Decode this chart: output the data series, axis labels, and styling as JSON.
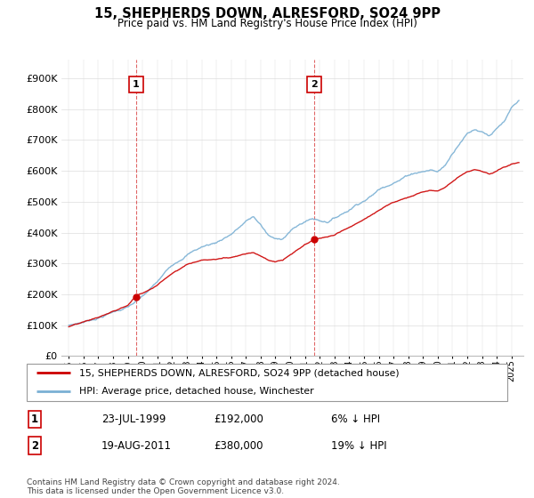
{
  "title": "15, SHEPHERDS DOWN, ALRESFORD, SO24 9PP",
  "subtitle": "Price paid vs. HM Land Registry's House Price Index (HPI)",
  "ylabel_ticks": [
    "£0",
    "£100K",
    "£200K",
    "£300K",
    "£400K",
    "£500K",
    "£600K",
    "£700K",
    "£800K",
    "£900K"
  ],
  "ytick_values": [
    0,
    100000,
    200000,
    300000,
    400000,
    500000,
    600000,
    700000,
    800000,
    900000
  ],
  "ylim": [
    0,
    960000
  ],
  "xlim_start": 1994.5,
  "xlim_end": 2025.8,
  "xtick_years": [
    1995,
    1996,
    1997,
    1998,
    1999,
    2000,
    2001,
    2002,
    2003,
    2004,
    2005,
    2006,
    2007,
    2008,
    2009,
    2010,
    2011,
    2012,
    2013,
    2014,
    2015,
    2016,
    2017,
    2018,
    2019,
    2020,
    2021,
    2022,
    2023,
    2024,
    2025
  ],
  "sale1_x": 1999.55,
  "sale1_y": 192000,
  "sale1_label": "1",
  "sale1_date": "23-JUL-1999",
  "sale1_price": "£192,000",
  "sale1_hpi": "6% ↓ HPI",
  "sale2_x": 2011.63,
  "sale2_y": 380000,
  "sale2_label": "2",
  "sale2_date": "19-AUG-2011",
  "sale2_price": "£380,000",
  "sale2_hpi": "19% ↓ HPI",
  "red_color": "#cc0000",
  "blue_color": "#7ab0d4",
  "legend_label_red": "15, SHEPHERDS DOWN, ALRESFORD, SO24 9PP (detached house)",
  "legend_label_blue": "HPI: Average price, detached house, Winchester",
  "footnote": "Contains HM Land Registry data © Crown copyright and database right 2024.\nThis data is licensed under the Open Government Licence v3.0.",
  "grid_color": "#dddddd"
}
